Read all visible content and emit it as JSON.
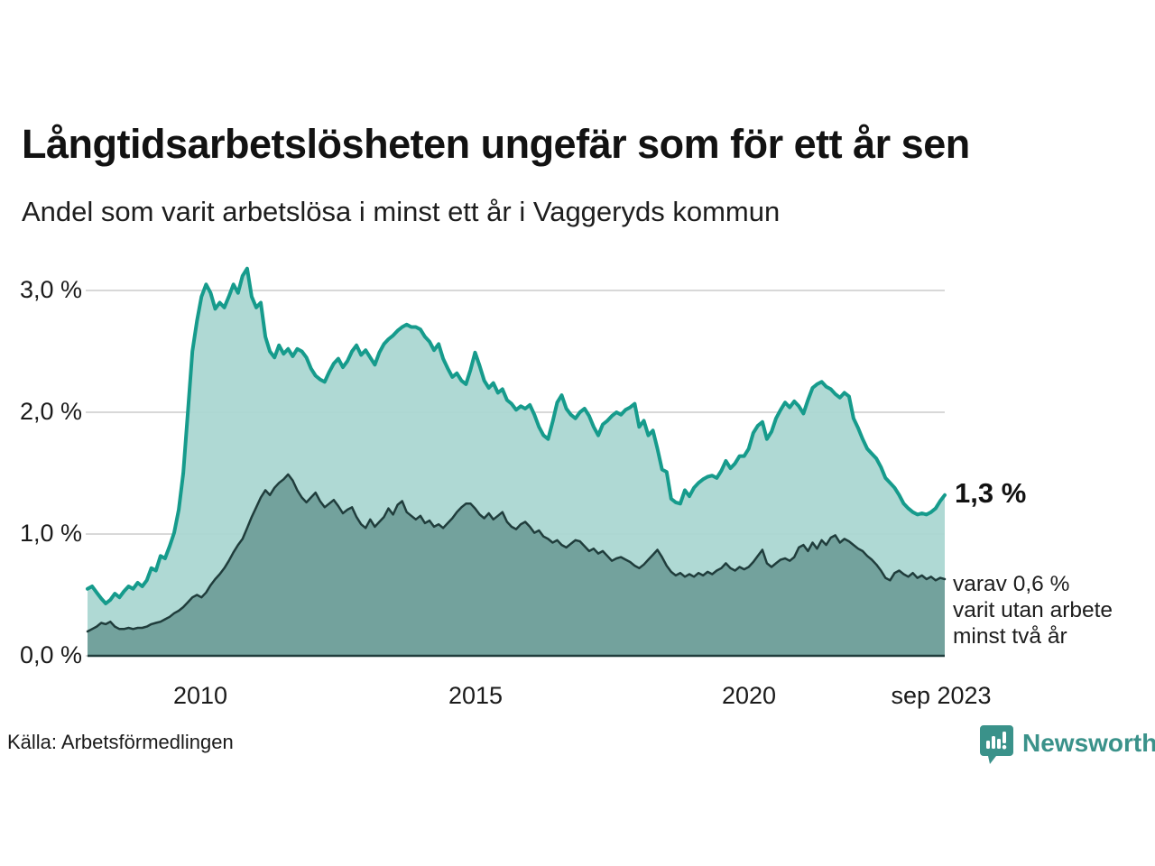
{
  "header": {
    "title": "Långtidsarbetslösheten ungefär som för ett år sen",
    "subtitle": "Andel som varit arbetslösa i minst ett år i Vaggeryds kommun"
  },
  "annotations": {
    "latest_value": "1,3 %",
    "secondary": [
      "varav 0,6 %",
      "varit utan arbete",
      "minst två år"
    ]
  },
  "footer": {
    "source": "Källa: Arbetsförmedlingen",
    "logo_text": "Newsworthy",
    "logo_color": "#3a928a"
  },
  "chart_data": {
    "type": "area",
    "title": "Långtidsarbetslösheten ungefär som för ett år sen",
    "subtitle": "Andel som varit arbetslösa i minst ett år i Vaggeryds kommun",
    "unit": "%",
    "x_start": "2008-01",
    "x_end": "2023-09",
    "x_resolution": "monthly",
    "ylim": [
      0,
      3.3
    ],
    "grid": true,
    "grid_color": "#cccccc",
    "y_tick_values": [
      3,
      2,
      1,
      0
    ],
    "y_tick_labels": [
      "3,0 %",
      "2,0 %",
      "1,0 %",
      "0,0 %"
    ],
    "x_tick_labels": [
      "2010",
      "2015",
      "2020",
      "sep 2023"
    ],
    "legend_position": "end-labels-right",
    "series": [
      {
        "name": "Arbetslösa minst ett år",
        "end_label": "1,3 %",
        "last_value": 1.3,
        "line_color": "#169b8c",
        "fill_color": "#aad7d1",
        "values": [
          0.55,
          0.57,
          0.52,
          0.47,
          0.43,
          0.46,
          0.51,
          0.48,
          0.53,
          0.57,
          0.55,
          0.6,
          0.57,
          0.62,
          0.72,
          0.7,
          0.82,
          0.8,
          0.9,
          1.01,
          1.2,
          1.5,
          2.0,
          2.5,
          2.75,
          2.95,
          3.05,
          2.98,
          2.85,
          2.9,
          2.86,
          2.95,
          3.05,
          2.98,
          3.12,
          3.18,
          2.95,
          2.86,
          2.9,
          2.62,
          2.5,
          2.45,
          2.55,
          2.48,
          2.52,
          2.46,
          2.52,
          2.5,
          2.45,
          2.36,
          2.3,
          2.27,
          2.25,
          2.33,
          2.4,
          2.44,
          2.37,
          2.42,
          2.5,
          2.55,
          2.47,
          2.51,
          2.45,
          2.39,
          2.49,
          2.56,
          2.6,
          2.63,
          2.67,
          2.7,
          2.72,
          2.7,
          2.7,
          2.68,
          2.62,
          2.58,
          2.51,
          2.56,
          2.44,
          2.36,
          2.29,
          2.32,
          2.26,
          2.23,
          2.35,
          2.49,
          2.38,
          2.26,
          2.2,
          2.24,
          2.16,
          2.19,
          2.1,
          2.07,
          2.02,
          2.05,
          2.03,
          2.06,
          1.98,
          1.88,
          1.81,
          1.78,
          1.92,
          2.08,
          2.14,
          2.03,
          1.98,
          1.95,
          2.0,
          2.03,
          1.97,
          1.88,
          1.81,
          1.9,
          1.93,
          1.97,
          2.0,
          1.98,
          2.02,
          2.04,
          2.07,
          1.88,
          1.93,
          1.81,
          1.85,
          1.7,
          1.53,
          1.51,
          1.29,
          1.26,
          1.25,
          1.36,
          1.31,
          1.38,
          1.42,
          1.45,
          1.47,
          1.48,
          1.46,
          1.52,
          1.6,
          1.54,
          1.58,
          1.64,
          1.64,
          1.7,
          1.83,
          1.89,
          1.92,
          1.78,
          1.84,
          1.95,
          2.02,
          2.08,
          2.04,
          2.09,
          2.05,
          1.99,
          2.1,
          2.2,
          2.23,
          2.25,
          2.21,
          2.19,
          2.15,
          2.12,
          2.16,
          2.13,
          1.95,
          1.87,
          1.78,
          1.7,
          1.66,
          1.62,
          1.55,
          1.46,
          1.42,
          1.38,
          1.32,
          1.25,
          1.21,
          1.18,
          1.16,
          1.17,
          1.16,
          1.18,
          1.21,
          1.27,
          1.32
        ]
      },
      {
        "name": "Arbetslösa minst två år",
        "end_label": "varav 0,6 % varit utan arbete minst två år",
        "last_value": 0.6,
        "line_color": "#203d3c",
        "fill_color": "#709e99",
        "values": [
          0.2,
          0.22,
          0.24,
          0.27,
          0.26,
          0.28,
          0.24,
          0.22,
          0.22,
          0.23,
          0.22,
          0.23,
          0.23,
          0.24,
          0.26,
          0.27,
          0.28,
          0.3,
          0.32,
          0.35,
          0.37,
          0.4,
          0.44,
          0.48,
          0.5,
          0.48,
          0.52,
          0.58,
          0.63,
          0.67,
          0.72,
          0.78,
          0.85,
          0.91,
          0.96,
          1.05,
          1.14,
          1.22,
          1.3,
          1.36,
          1.32,
          1.38,
          1.42,
          1.45,
          1.49,
          1.44,
          1.36,
          1.3,
          1.26,
          1.3,
          1.34,
          1.27,
          1.22,
          1.25,
          1.28,
          1.23,
          1.17,
          1.2,
          1.22,
          1.14,
          1.08,
          1.05,
          1.12,
          1.06,
          1.1,
          1.14,
          1.21,
          1.16,
          1.24,
          1.27,
          1.18,
          1.15,
          1.12,
          1.15,
          1.09,
          1.11,
          1.06,
          1.08,
          1.05,
          1.09,
          1.13,
          1.18,
          1.22,
          1.25,
          1.25,
          1.21,
          1.16,
          1.13,
          1.17,
          1.12,
          1.15,
          1.18,
          1.1,
          1.06,
          1.04,
          1.08,
          1.1,
          1.06,
          1.01,
          1.03,
          0.98,
          0.96,
          0.93,
          0.95,
          0.91,
          0.89,
          0.92,
          0.95,
          0.94,
          0.9,
          0.86,
          0.88,
          0.84,
          0.86,
          0.82,
          0.78,
          0.8,
          0.81,
          0.79,
          0.77,
          0.74,
          0.72,
          0.75,
          0.79,
          0.83,
          0.87,
          0.81,
          0.74,
          0.69,
          0.66,
          0.68,
          0.65,
          0.67,
          0.65,
          0.68,
          0.66,
          0.69,
          0.67,
          0.7,
          0.72,
          0.76,
          0.72,
          0.7,
          0.73,
          0.71,
          0.73,
          0.77,
          0.82,
          0.87,
          0.76,
          0.73,
          0.76,
          0.79,
          0.8,
          0.78,
          0.81,
          0.89,
          0.91,
          0.86,
          0.93,
          0.88,
          0.95,
          0.91,
          0.97,
          0.99,
          0.93,
          0.96,
          0.94,
          0.91,
          0.88,
          0.86,
          0.82,
          0.79,
          0.75,
          0.7,
          0.64,
          0.62,
          0.68,
          0.7,
          0.67,
          0.65,
          0.68,
          0.64,
          0.66,
          0.63,
          0.65,
          0.62,
          0.64,
          0.63
        ]
      }
    ]
  }
}
